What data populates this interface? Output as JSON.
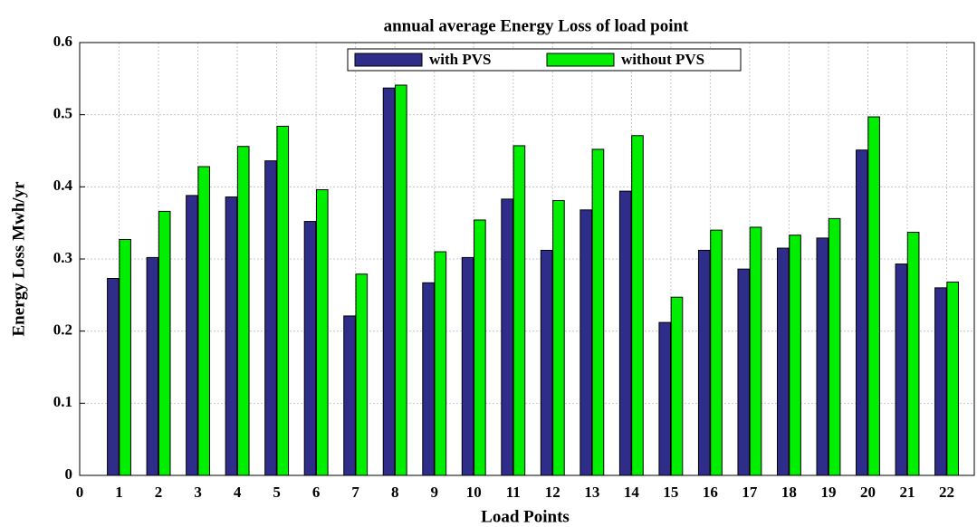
{
  "chart_data": {
    "type": "bar",
    "title": "annual average Energy Loss of load point",
    "xlabel": "Load Points",
    "ylabel": "Energy Loss Mwh/yr",
    "x": [
      1,
      2,
      3,
      4,
      5,
      6,
      7,
      8,
      9,
      10,
      11,
      12,
      13,
      14,
      15,
      16,
      17,
      18,
      19,
      20,
      21,
      22
    ],
    "series": [
      {
        "name": "with PVS",
        "color": "#2e2e8a",
        "values": [
          0.273,
          0.302,
          0.388,
          0.386,
          0.436,
          0.352,
          0.221,
          0.537,
          0.267,
          0.302,
          0.383,
          0.312,
          0.368,
          0.394,
          0.212,
          0.312,
          0.286,
          0.315,
          0.329,
          0.451,
          0.293,
          0.26
        ]
      },
      {
        "name": "without PVS",
        "color": "#00ee00",
        "values": [
          0.327,
          0.366,
          0.428,
          0.456,
          0.484,
          0.396,
          0.279,
          0.541,
          0.31,
          0.354,
          0.457,
          0.381,
          0.452,
          0.471,
          0.247,
          0.34,
          0.344,
          0.333,
          0.356,
          0.497,
          0.337,
          0.268
        ]
      }
    ],
    "xlim": [
      0,
      22.7
    ],
    "xticks": [
      0,
      1,
      2,
      3,
      4,
      5,
      6,
      7,
      8,
      9,
      10,
      11,
      12,
      13,
      14,
      15,
      16,
      17,
      18,
      19,
      20,
      21,
      22
    ],
    "ylim": [
      0,
      0.6
    ],
    "yticks": [
      0,
      0.1,
      0.2,
      0.3,
      0.4,
      0.5,
      0.6
    ],
    "grid": true,
    "legend": "top"
  }
}
